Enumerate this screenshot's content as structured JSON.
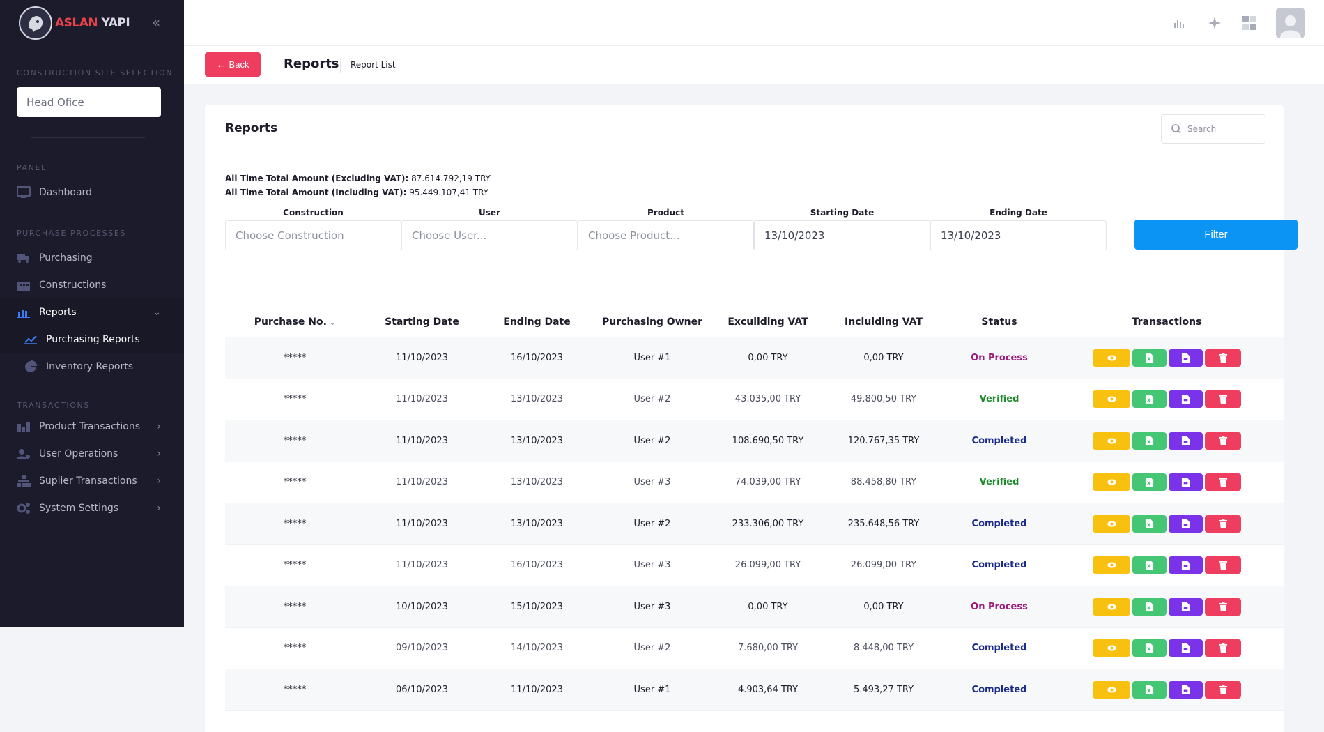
{
  "sidebar": {
    "brand_a": "ASLAN",
    "brand_b": "YAPI",
    "site_section": "CONSTRUCTION SITE SELECTION",
    "site_value": "Head Ofice",
    "panel_section": "PANEL",
    "dashboard": "Dashboard",
    "purchase_section": "PURCHASE PROCESSES",
    "purchasing": "Purchasing",
    "constructions": "Constructions",
    "reports": "Reports",
    "purchasing_reports": "Purchasing Reports",
    "inventory_reports": "Inventory Reports",
    "transactions_section": "TRANSACTIONS",
    "product_transactions": "Product Transactions",
    "user_operations": "User Operations",
    "suplier_transactions": "Suplier Transactions",
    "system_settings": "System Settings"
  },
  "breadcrumb": {
    "back": "Back",
    "title": "Reports",
    "sub": "Report List"
  },
  "card": {
    "title": "Reports",
    "search_placeholder": "Search",
    "total_excl_label": "All Time Total Amount (Excluding VAT):",
    "total_excl_value": " 87.614.792,19 TRY",
    "total_incl_label": "All Time Total Amount (Including VAT):",
    "total_incl_value": " 95.449.107,41 TRY"
  },
  "filters": {
    "construction_label": "Construction",
    "construction_placeholder": "Choose Construction",
    "user_label": "User",
    "user_placeholder": "Choose User...",
    "product_label": "Product",
    "product_placeholder": "Choose Product...",
    "start_label": "Starting Date",
    "start_value": "13/10/2023",
    "end_label": "Ending Date",
    "end_value": "13/10/2023",
    "filter_button": "Filter"
  },
  "table": {
    "headers": [
      "Purchase No.",
      "Starting Date",
      "Ending Date",
      "Purchasing Owner",
      "Exculiding VAT",
      "Incluiding VAT",
      "Status",
      "Transactions"
    ],
    "rows": [
      {
        "no": "*****",
        "start": "11/10/2023",
        "end": "16/10/2023",
        "owner": "User #1",
        "excl": "0,00 TRY",
        "incl": "0,00 TRY",
        "status": "On Process"
      },
      {
        "no": "*****",
        "start": "11/10/2023",
        "end": "13/10/2023",
        "owner": "User #2",
        "excl": "43.035,00 TRY",
        "incl": "49.800,50 TRY",
        "status": "Verified"
      },
      {
        "no": "*****",
        "start": "11/10/2023",
        "end": "13/10/2023",
        "owner": "User #2",
        "excl": "108.690,50 TRY",
        "incl": "120.767,35 TRY",
        "status": "Completed"
      },
      {
        "no": "*****",
        "start": "11/10/2023",
        "end": "13/10/2023",
        "owner": "User #3",
        "excl": "74.039,00 TRY",
        "incl": "88.458,80 TRY",
        "status": "Verified"
      },
      {
        "no": "*****",
        "start": "11/10/2023",
        "end": "13/10/2023",
        "owner": "User #2",
        "excl": "233.306,00 TRY",
        "incl": "235.648,56 TRY",
        "status": "Completed"
      },
      {
        "no": "*****",
        "start": "11/10/2023",
        "end": "16/10/2023",
        "owner": "User #3",
        "excl": "26.099,00 TRY",
        "incl": "26.099,00 TRY",
        "status": "Completed"
      },
      {
        "no": "*****",
        "start": "10/10/2023",
        "end": "15/10/2023",
        "owner": "User #3",
        "excl": "0,00 TRY",
        "incl": "0,00 TRY",
        "status": "On Process"
      },
      {
        "no": "*****",
        "start": "09/10/2023",
        "end": "14/10/2023",
        "owner": "User #2",
        "excl": "7.680,00 TRY",
        "incl": "8.448,00 TRY",
        "status": "Completed"
      },
      {
        "no": "*****",
        "start": "06/10/2023",
        "end": "11/10/2023",
        "owner": "User #1",
        "excl": "4.903,64 TRY",
        "incl": "5.493,27 TRY",
        "status": "Completed"
      }
    ]
  },
  "colors": {
    "sidebar_bg": "#1b1b2c",
    "back_button": "#ef3d5f",
    "filter_button": "#0c94f4",
    "view_action": "#f9c10f",
    "excel_action": "#45c674",
    "pdf_action": "#7a33e8",
    "delete_action": "#ef3d5f"
  }
}
